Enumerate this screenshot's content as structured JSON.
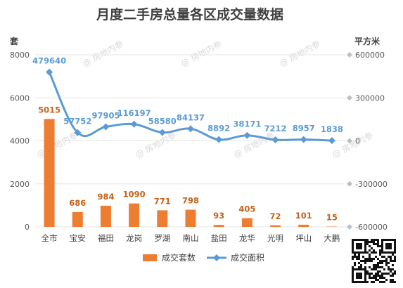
{
  "chart_data": {
    "type": "bar",
    "title": "月度二手房总量各区成交量数据",
    "y_left_unit": "套",
    "y_right_unit": "平方米",
    "categories": [
      "全市",
      "宝安",
      "福田",
      "龙岗",
      "罗湖",
      "南山",
      "盐田",
      "龙华",
      "光明",
      "坪山",
      "大鹏"
    ],
    "y_left_ticks": [
      0,
      2000,
      4000,
      6000,
      8000
    ],
    "y_right_ticks": [
      -600000,
      -300000,
      0,
      300000,
      600000
    ],
    "y_left_lim": [
      0,
      8000
    ],
    "y_right_lim": [
      -600000,
      600000
    ],
    "series": [
      {
        "name": "成交套数",
        "type": "bar",
        "axis": "left",
        "color": "#ed7d31",
        "values": [
          5015,
          686,
          984,
          1090,
          771,
          798,
          93,
          405,
          72,
          101,
          15
        ]
      },
      {
        "name": "成交面积",
        "type": "line",
        "axis": "right",
        "color": "#5b9bd5",
        "values": [
          479640,
          57752,
          97905,
          116197,
          58580,
          84137,
          8892,
          38171,
          7212,
          8957,
          1838
        ]
      }
    ],
    "legend_position": "bottom",
    "grid": true
  },
  "watermark": "@ 房地内参"
}
